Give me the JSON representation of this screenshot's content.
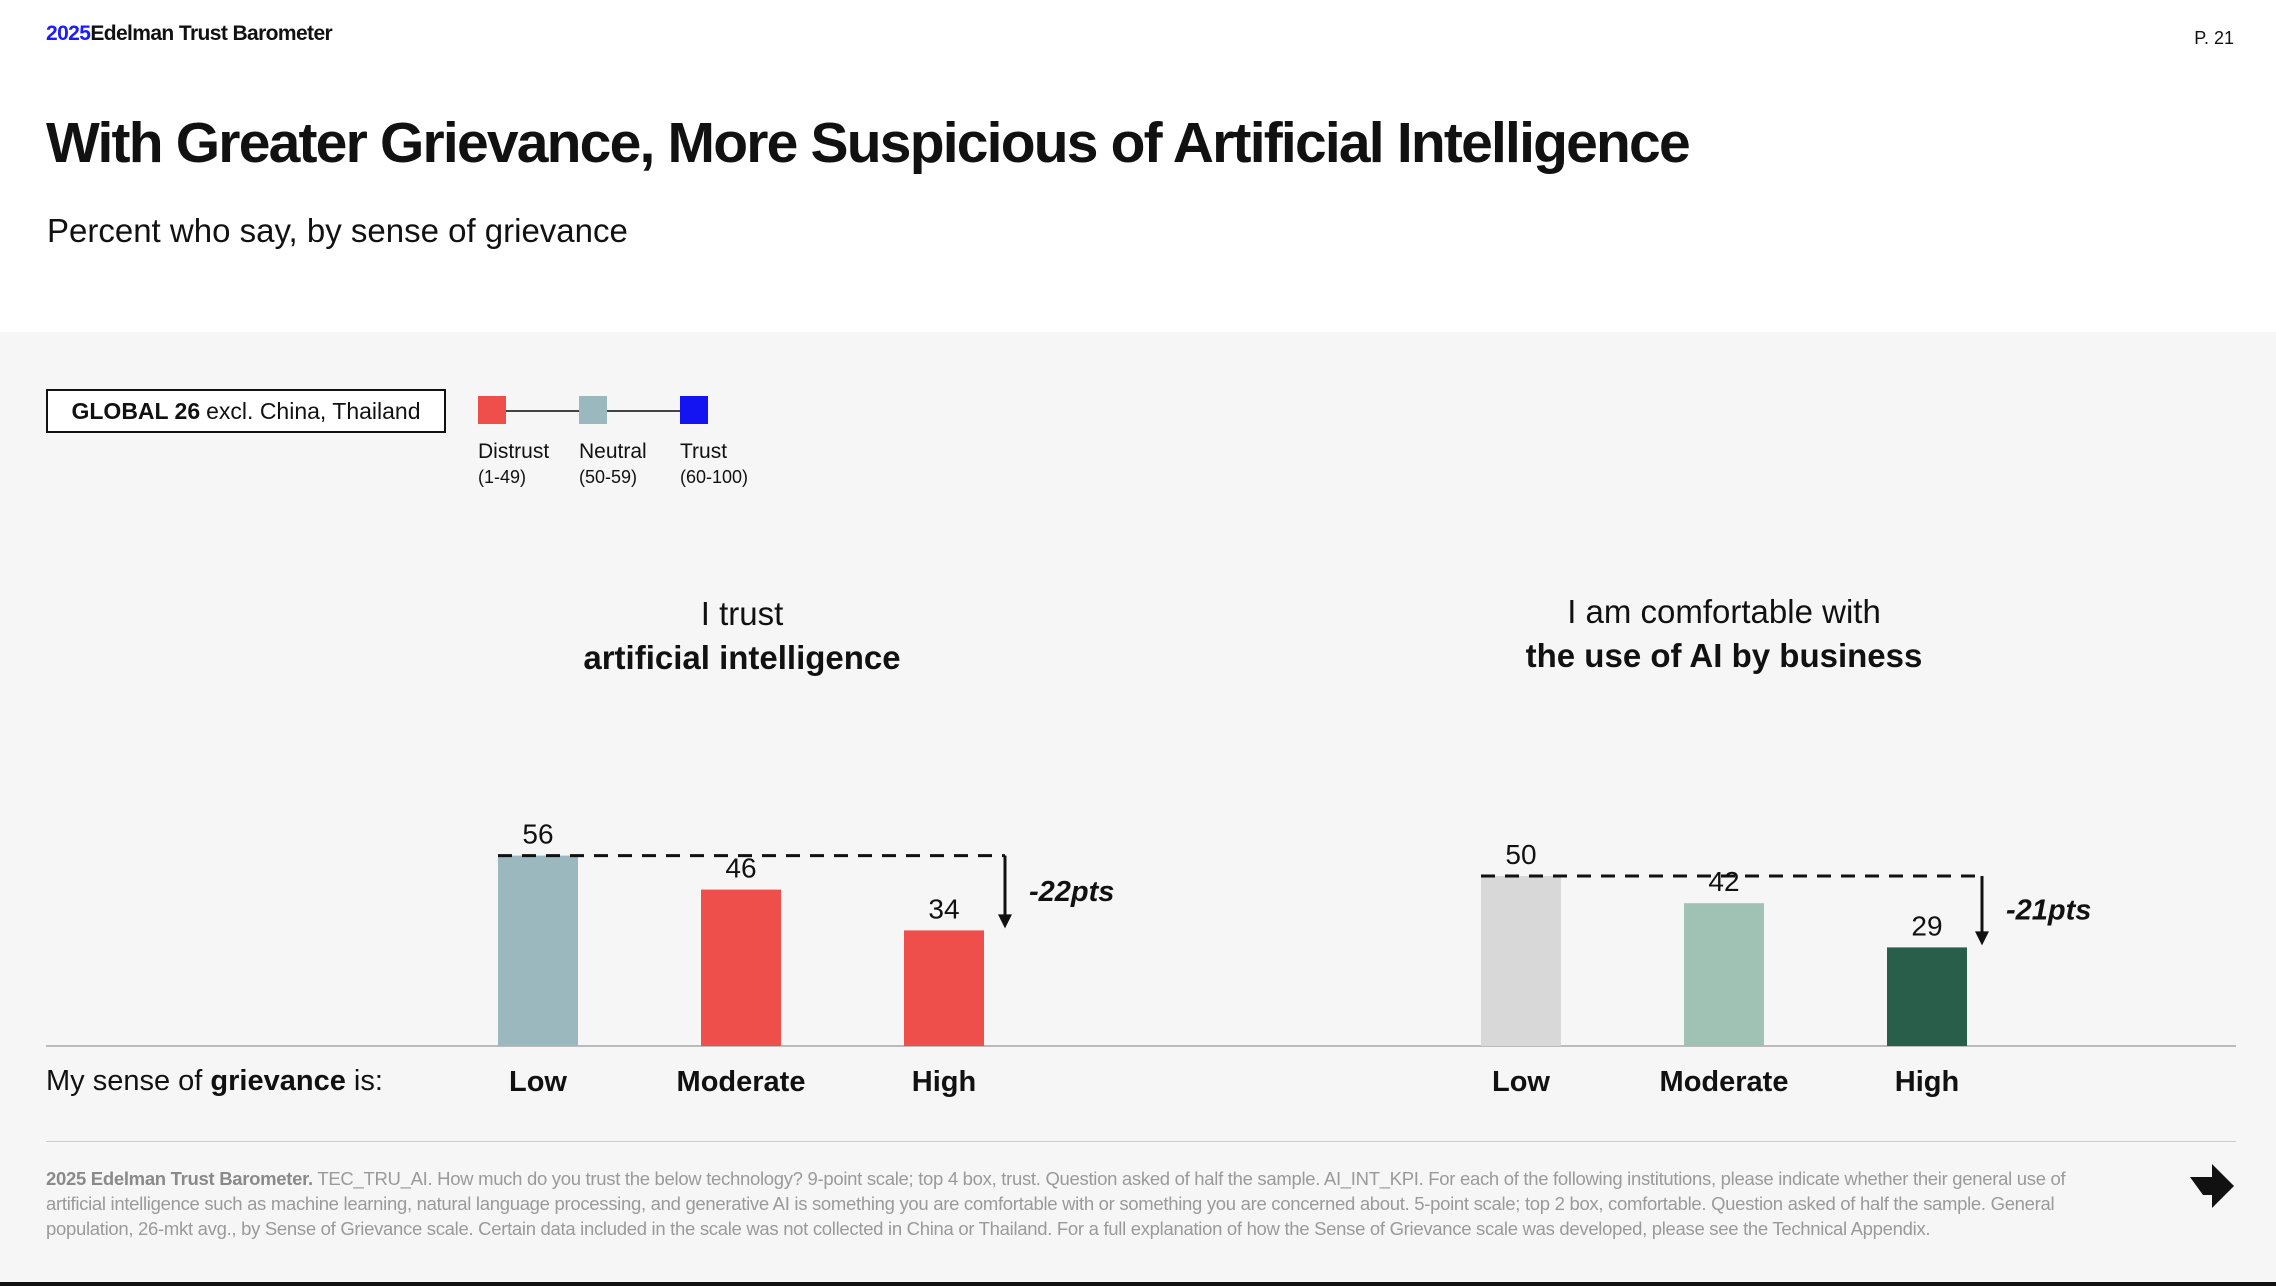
{
  "header": {
    "brand_year": "2025",
    "brand_name": "Edelman Trust Barometer",
    "page_number": "P. 21"
  },
  "title": "With Greater Grievance, More Suspicious of Artificial Intelligence",
  "subtitle": "Percent who say, by sense of grievance",
  "filter": {
    "bold": "GLOBAL 26",
    "rest": "excl. China, Thailand"
  },
  "legend": [
    {
      "label": "Distrust",
      "range": "(1-49)",
      "color": "#ee4f4a"
    },
    {
      "label": "Neutral",
      "range": "(50-59)",
      "color": "#9ab8bd"
    },
    {
      "label": "Trust",
      "range": "(60-100)",
      "color": "#1414f2"
    }
  ],
  "row_label": {
    "pre": "My sense of ",
    "bold": "grievance",
    "post": " is:"
  },
  "chart_data": [
    {
      "type": "bar",
      "title_line1": "I trust",
      "title_line2": "artificial intelligence",
      "categories": [
        "Low",
        "Moderate",
        "High"
      ],
      "values": [
        56,
        46,
        34
      ],
      "colors": [
        "#9ab8bd",
        "#ee4f4a",
        "#ee4f4a"
      ],
      "difference_label": "-22pts"
    },
    {
      "type": "bar",
      "title_line1": "I am comfortable with",
      "title_line2": "the use of AI by business",
      "categories": [
        "Low",
        "Moderate",
        "High"
      ],
      "values": [
        50,
        42,
        29
      ],
      "colors": [
        "#d8d8d8",
        "#9fc2b5",
        "#285e4a"
      ],
      "difference_label": "-21pts"
    }
  ],
  "footnote": {
    "bold": "2025 Edelman Trust Barometer.",
    "text": " TEC_TRU_AI. How much do you trust the below technology? 9-point scale; top 4 box, trust. Question asked of half the sample. AI_INT_KPI. For each of the following institutions, please indicate whether their general use of artificial intelligence such as machine learning, natural language processing, and generative AI is something you are comfortable with or something you are concerned about. 5-point scale; top 2 box, comfortable. Question asked of half the sample. General population, 26-mkt avg., by Sense of Grievance scale. Certain data included in the scale was not collected in China or Thailand. For a full explanation of how the Sense of Grievance scale was developed, please see the Technical Appendix."
  }
}
